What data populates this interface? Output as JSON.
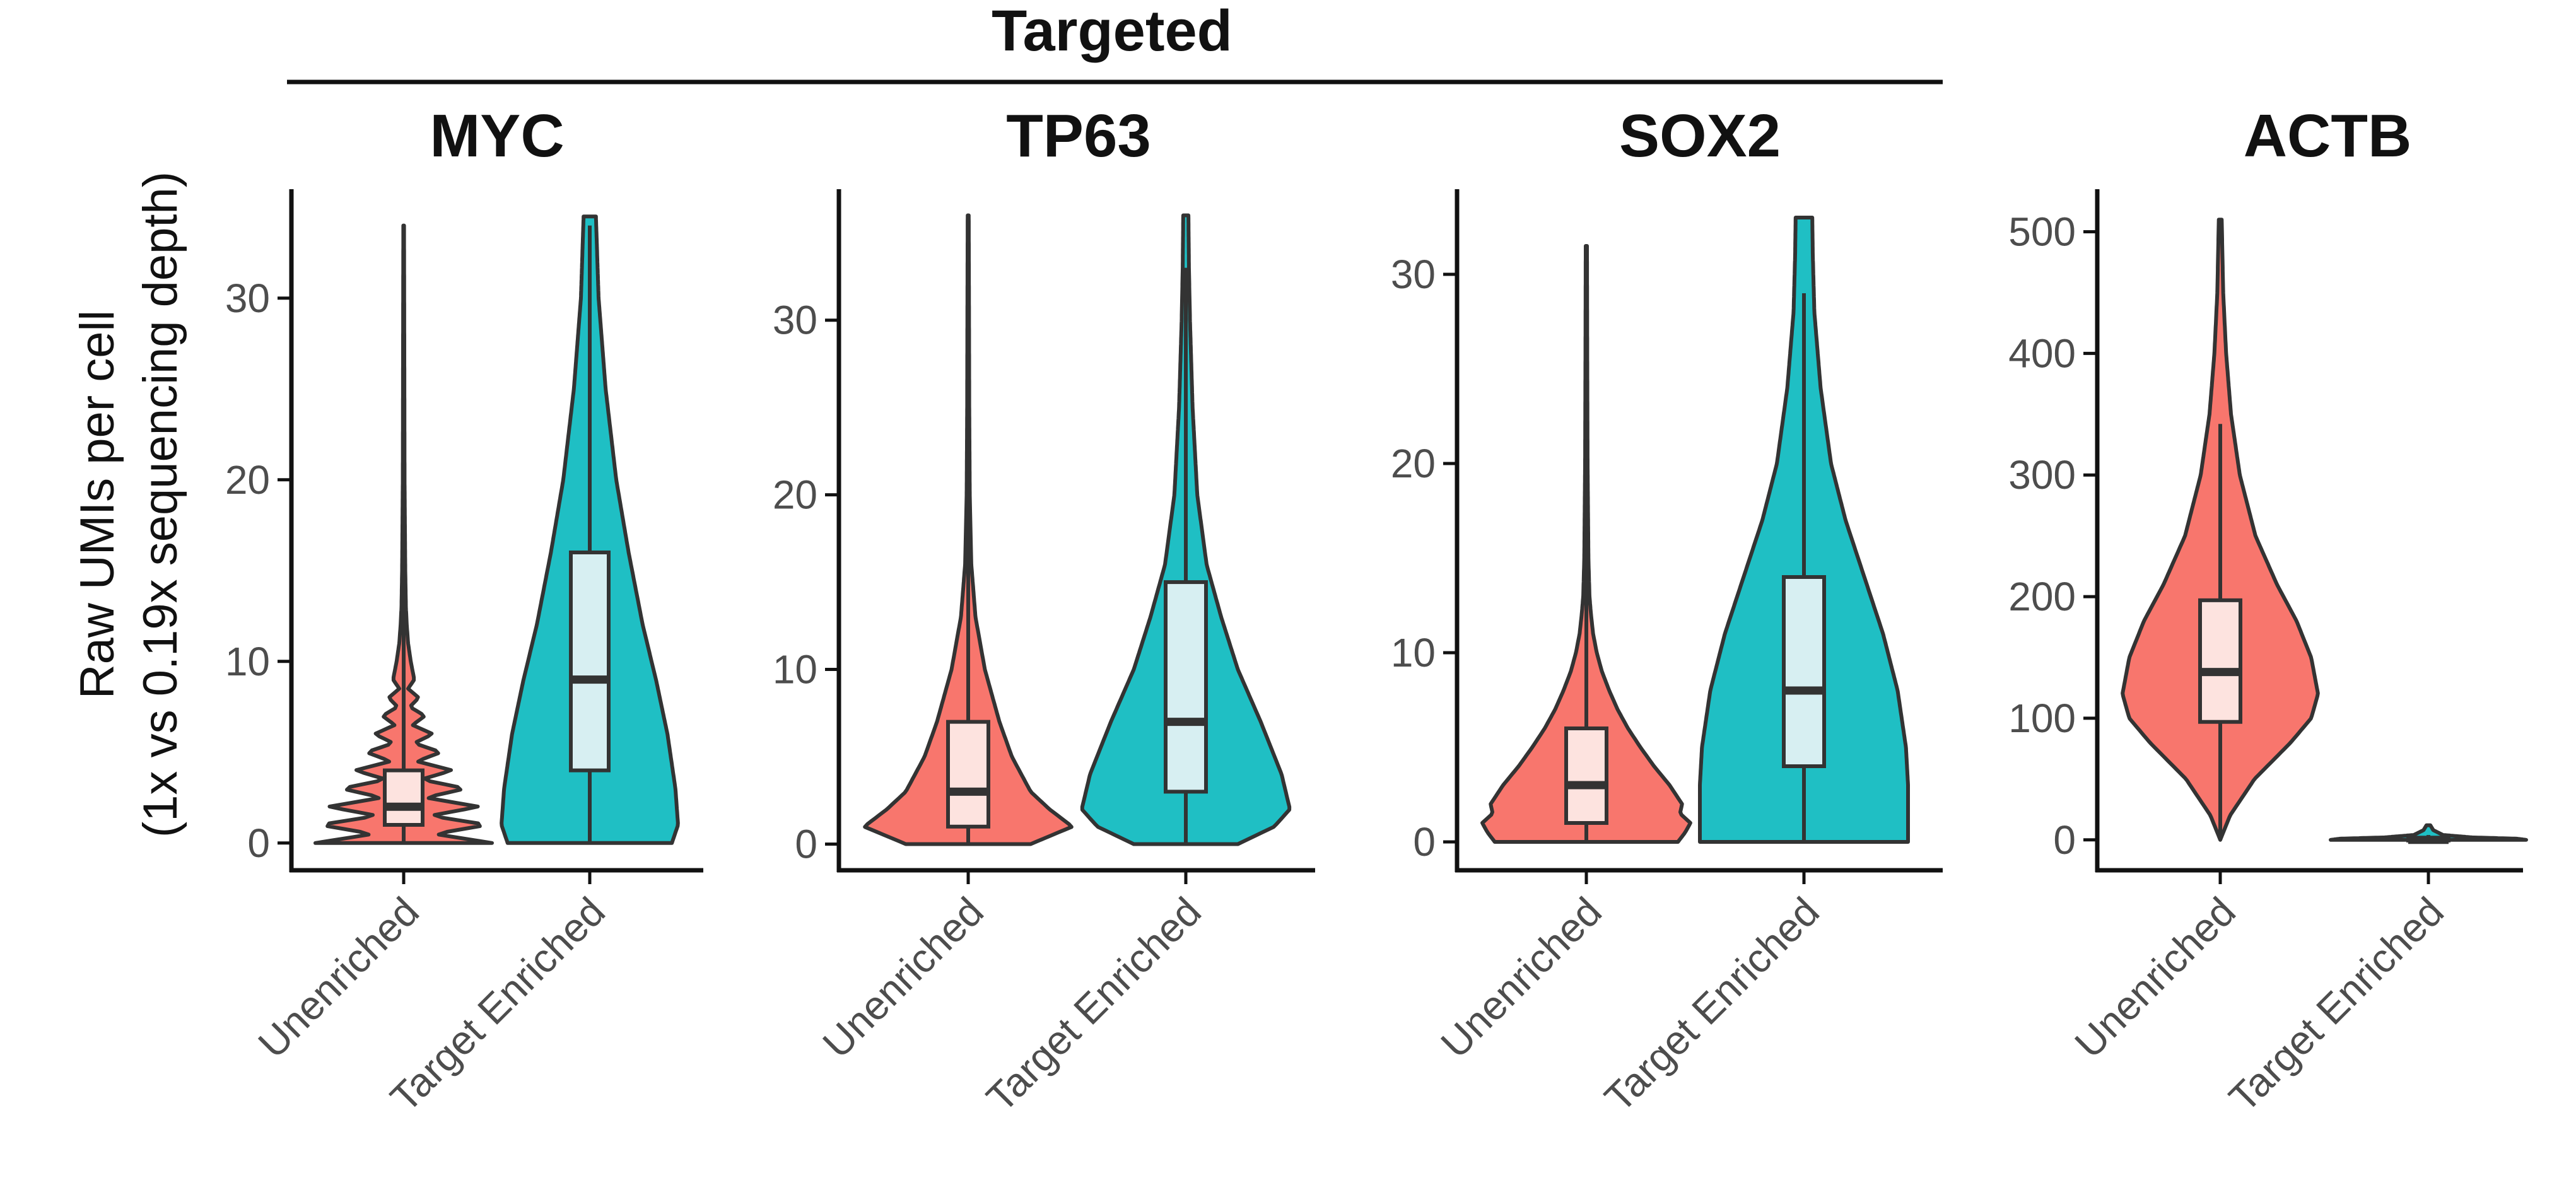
{
  "figure": {
    "group_title": "Targeted",
    "ylabel_line1": "Raw UMIs per cell",
    "ylabel_line2": "(1x vs 0.19x sequencing depth)"
  },
  "colors": {
    "unenriched_fill": "#F8766D",
    "enriched_fill": "#1FBFC4",
    "unenriched_box": "#FDE3DF",
    "enriched_box": "#D7EFF2",
    "outline": "#333333",
    "axis": "#111111"
  },
  "chart_data": [
    {
      "type": "violin",
      "title": "MYC",
      "categories": [
        "Unenriched",
        "Target Enriched"
      ],
      "ylim": [
        -1.5,
        36
      ],
      "yticks": [
        0,
        10,
        20,
        30
      ],
      "grid": false,
      "series": [
        {
          "category": "Unenriched",
          "fill": "#F8766D",
          "box": {
            "min": 0,
            "q1": 1,
            "median": 2,
            "q3": 4,
            "max": 34
          },
          "violin_max": 34,
          "density": [
            [
              0,
              1.0
            ],
            [
              0.5,
              0.35
            ],
            [
              1,
              0.95
            ],
            [
              1.5,
              0.3
            ],
            [
              2,
              0.85
            ],
            [
              2.5,
              0.25
            ],
            [
              3,
              0.7
            ],
            [
              3.5,
              0.2
            ],
            [
              4,
              0.55
            ],
            [
              4.5,
              0.15
            ],
            [
              5,
              0.42
            ],
            [
              5.5,
              0.12
            ],
            [
              6,
              0.33
            ],
            [
              6.5,
              0.1
            ],
            [
              7,
              0.24
            ],
            [
              7.5,
              0.07
            ],
            [
              8,
              0.17
            ],
            [
              8.5,
              0.05
            ],
            [
              9,
              0.12
            ],
            [
              10,
              0.08
            ],
            [
              11,
              0.05
            ],
            [
              12,
              0.035
            ],
            [
              13,
              0.025
            ],
            [
              15,
              0.018
            ],
            [
              20,
              0.01
            ],
            [
              25,
              0.008
            ],
            [
              30,
              0.006
            ],
            [
              34,
              0.004
            ]
          ]
        },
        {
          "category": "Target Enriched",
          "fill": "#1FBFC4",
          "box": {
            "min": 0,
            "q1": 4,
            "median": 9,
            "q3": 16,
            "max": 34
          },
          "violin_max": 34.5,
          "density": [
            [
              0,
              0.93
            ],
            [
              1,
              1.0
            ],
            [
              3,
              0.97
            ],
            [
              6,
              0.88
            ],
            [
              9,
              0.75
            ],
            [
              12,
              0.6
            ],
            [
              16,
              0.44
            ],
            [
              20,
              0.3
            ],
            [
              25,
              0.18
            ],
            [
              30,
              0.1
            ],
            [
              33,
              0.08
            ],
            [
              34.5,
              0.07
            ]
          ]
        }
      ]
    },
    {
      "type": "violin",
      "title": "TP63",
      "categories": [
        "Unenriched",
        "Target Enriched"
      ],
      "ylim": [
        -1.5,
        37.5
      ],
      "yticks": [
        0,
        10,
        20,
        30
      ],
      "grid": false,
      "series": [
        {
          "category": "Unenriched",
          "fill": "#F8766D",
          "box": {
            "min": 0,
            "q1": 1,
            "median": 3,
            "q3": 7,
            "max": 36
          },
          "violin_max": 36,
          "density": [
            [
              0,
              0.6
            ],
            [
              1,
              1.0
            ],
            [
              2,
              0.78
            ],
            [
              3,
              0.6
            ],
            [
              5,
              0.42
            ],
            [
              7,
              0.3
            ],
            [
              10,
              0.16
            ],
            [
              13,
              0.07
            ],
            [
              16,
              0.03
            ],
            [
              20,
              0.015
            ],
            [
              25,
              0.01
            ],
            [
              30,
              0.008
            ],
            [
              36,
              0.005
            ]
          ]
        },
        {
          "category": "Target Enriched",
          "fill": "#1FBFC4",
          "box": {
            "min": 0,
            "q1": 3,
            "median": 7,
            "q3": 15,
            "max": 33
          },
          "violin_max": 36,
          "density": [
            [
              0,
              0.5
            ],
            [
              1,
              0.85
            ],
            [
              2,
              1.0
            ],
            [
              4,
              0.92
            ],
            [
              7,
              0.72
            ],
            [
              10,
              0.5
            ],
            [
              13,
              0.34
            ],
            [
              16,
              0.2
            ],
            [
              20,
              0.11
            ],
            [
              25,
              0.065
            ],
            [
              30,
              0.04
            ],
            [
              33,
              0.03
            ],
            [
              36,
              0.025
            ]
          ]
        }
      ]
    },
    {
      "type": "violin",
      "title": "SOX2",
      "categories": [
        "Unenriched",
        "Target Enriched"
      ],
      "ylim": [
        -1.5,
        34.5
      ],
      "yticks": [
        0,
        10,
        20,
        30
      ],
      "grid": false,
      "series": [
        {
          "category": "Unenriched",
          "fill": "#F8766D",
          "box": {
            "min": 0,
            "q1": 1,
            "median": 3,
            "q3": 6,
            "max": 31
          },
          "violin_max": 31.5,
          "density": [
            [
              0,
              0.88
            ],
            [
              0.5,
              0.95
            ],
            [
              1,
              1.0
            ],
            [
              1.5,
              0.9
            ],
            [
              2,
              0.92
            ],
            [
              3,
              0.8
            ],
            [
              4,
              0.65
            ],
            [
              5,
              0.52
            ],
            [
              6,
              0.4
            ],
            [
              7,
              0.3
            ],
            [
              8,
              0.22
            ],
            [
              9,
              0.15
            ],
            [
              10,
              0.1
            ],
            [
              11,
              0.065
            ],
            [
              12,
              0.045
            ],
            [
              13,
              0.03
            ],
            [
              15,
              0.02
            ],
            [
              20,
              0.012
            ],
            [
              25,
              0.009
            ],
            [
              31.5,
              0.006
            ]
          ]
        },
        {
          "category": "Target Enriched",
          "fill": "#1FBFC4",
          "box": {
            "min": 0,
            "q1": 4,
            "median": 8,
            "q3": 14,
            "max": 29
          },
          "violin_max": 33,
          "density": [
            [
              0,
              1.0
            ],
            [
              3,
              1.0
            ],
            [
              5,
              0.98
            ],
            [
              8,
              0.9
            ],
            [
              11,
              0.76
            ],
            [
              14,
              0.58
            ],
            [
              17,
              0.4
            ],
            [
              20,
              0.26
            ],
            [
              24,
              0.16
            ],
            [
              28,
              0.1
            ],
            [
              31,
              0.085
            ],
            [
              33,
              0.08
            ]
          ]
        }
      ]
    },
    {
      "type": "violin",
      "title": "ACTB",
      "categories": [
        "Unenriched",
        "Target Enriched"
      ],
      "ylim": [
        -25,
        535
      ],
      "yticks": [
        0,
        100,
        200,
        300,
        400,
        500
      ],
      "grid": false,
      "series": [
        {
          "category": "Unenriched",
          "fill": "#F8766D",
          "box": {
            "min": 0,
            "q1": 97,
            "median": 138,
            "q3": 197,
            "max": 342
          },
          "violin_max": 510,
          "density": [
            [
              0,
              0.0
            ],
            [
              20,
              0.1
            ],
            [
              50,
              0.35
            ],
            [
              80,
              0.72
            ],
            [
              100,
              0.93
            ],
            [
              120,
              1.0
            ],
            [
              150,
              0.93
            ],
            [
              180,
              0.78
            ],
            [
              210,
              0.58
            ],
            [
              250,
              0.36
            ],
            [
              300,
              0.2
            ],
            [
              350,
              0.11
            ],
            [
              400,
              0.06
            ],
            [
              450,
              0.03
            ],
            [
              510,
              0.015
            ]
          ]
        },
        {
          "category": "Target Enriched",
          "fill": "#1FBFC4",
          "box": {
            "min": 0,
            "q1": 0,
            "median": 0,
            "q3": 1,
            "max": 4
          },
          "violin_max": 12,
          "density": [
            [
              0,
              1.0
            ],
            [
              1,
              0.9
            ],
            [
              2,
              0.45
            ],
            [
              4,
              0.15
            ],
            [
              8,
              0.05
            ],
            [
              12,
              0.02
            ]
          ]
        }
      ]
    }
  ]
}
